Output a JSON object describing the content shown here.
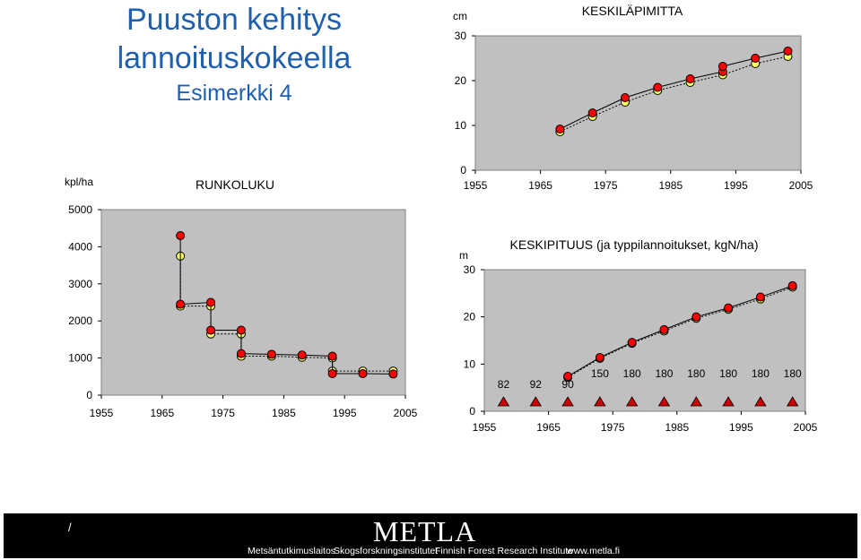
{
  "header": {
    "title_line1": "Puuston kehitys",
    "title_line2": "lannoituskokeella",
    "subtitle": "Esimerkki 4"
  },
  "chart_data": [
    {
      "id": "diameter",
      "type": "line",
      "title": "KESKILÄPIMITTA",
      "ylabel": "cm",
      "ylim": [
        0,
        30
      ],
      "yticks": [
        0,
        10,
        20,
        30
      ],
      "xlim": [
        1955,
        2005
      ],
      "xticks": [
        1955,
        1965,
        1975,
        1985,
        1995,
        2005
      ],
      "grid": false,
      "series": [
        {
          "color": "#ff0000",
          "line": "solid",
          "x": [
            1968,
            1973,
            1978,
            1983,
            1988,
            1993,
            1993,
            1998,
            2003
          ],
          "y": [
            9.2,
            12.8,
            16.2,
            18.5,
            20.4,
            22.0,
            23.2,
            25.0,
            26.6
          ]
        },
        {
          "color": "#ffff66",
          "line": "dotted",
          "x": [
            1968,
            1973,
            1978,
            1983,
            1988,
            1993,
            1998,
            2003
          ],
          "y": [
            8.6,
            12.0,
            15.2,
            17.8,
            19.6,
            21.3,
            23.8,
            25.4
          ]
        }
      ]
    },
    {
      "id": "stem-count",
      "type": "line",
      "title": "RUNKOLUKU",
      "ylabel": "kpl/ha",
      "ylim": [
        0,
        5000
      ],
      "yticks": [
        0,
        1000,
        2000,
        3000,
        4000,
        5000
      ],
      "xlim": [
        1955,
        2005
      ],
      "xticks": [
        1955,
        1965,
        1975,
        1985,
        1995,
        2005
      ],
      "grid": false,
      "series": [
        {
          "color": "#ff0000",
          "line": "solid",
          "x": [
            1968,
            1968,
            1973,
            1973,
            1978,
            1978,
            1983,
            1988,
            1993,
            1993,
            1998,
            2003
          ],
          "y": [
            4300,
            2450,
            2500,
            1750,
            1750,
            1120,
            1100,
            1080,
            1050,
            580,
            580,
            570
          ]
        },
        {
          "color": "#ffff66",
          "line": "dotted",
          "x": [
            1968,
            1968,
            1973,
            1973,
            1978,
            1978,
            1983,
            1988,
            1993,
            1993,
            1998,
            2003
          ],
          "y": [
            3750,
            2400,
            2400,
            1650,
            1650,
            1050,
            1050,
            1020,
            1000,
            650,
            650,
            650
          ]
        }
      ]
    },
    {
      "id": "height",
      "type": "line",
      "title": "KESKIPITUUS  (ja typpilannoitukset, kgN/ha)",
      "ylabel": "m",
      "ylim": [
        0,
        30
      ],
      "yticks": [
        0,
        10,
        20,
        30
      ],
      "xlim": [
        1955,
        2005
      ],
      "xticks": [
        1955,
        1965,
        1975,
        1985,
        1995,
        2005
      ],
      "grid": false,
      "series": [
        {
          "color": "#ff0000",
          "line": "solid",
          "x": [
            1968,
            1973,
            1978,
            1983,
            1988,
            1993,
            1998,
            2003
          ],
          "y": [
            7.4,
            11.4,
            14.6,
            17.3,
            20.0,
            21.9,
            24.2,
            26.6
          ]
        },
        {
          "color": "#ffff66",
          "line": "dotted",
          "x": [
            1968,
            1973,
            1978,
            1983,
            1988,
            1993,
            1998,
            2003
          ],
          "y": [
            7.2,
            11.2,
            14.4,
            17.0,
            19.7,
            21.6,
            23.8,
            26.3
          ]
        }
      ],
      "fertilization": {
        "color": "#cc0000",
        "x": [
          1958,
          1963,
          1968,
          1973,
          1978,
          1983,
          1988,
          1993,
          1998,
          2003
        ],
        "labels": [
          "82",
          "92",
          "90",
          "150",
          "180",
          "180",
          "180",
          "180",
          "180",
          "180"
        ]
      }
    }
  ],
  "footer": {
    "slash": "/",
    "logo": "METLA",
    "org_fi": "Metsäntutkimuslaitos",
    "org_sv": "Skogsforskningsinstitutet",
    "org_en": "Finnish Forest Research Institute",
    "url": "www.metla.fi"
  }
}
